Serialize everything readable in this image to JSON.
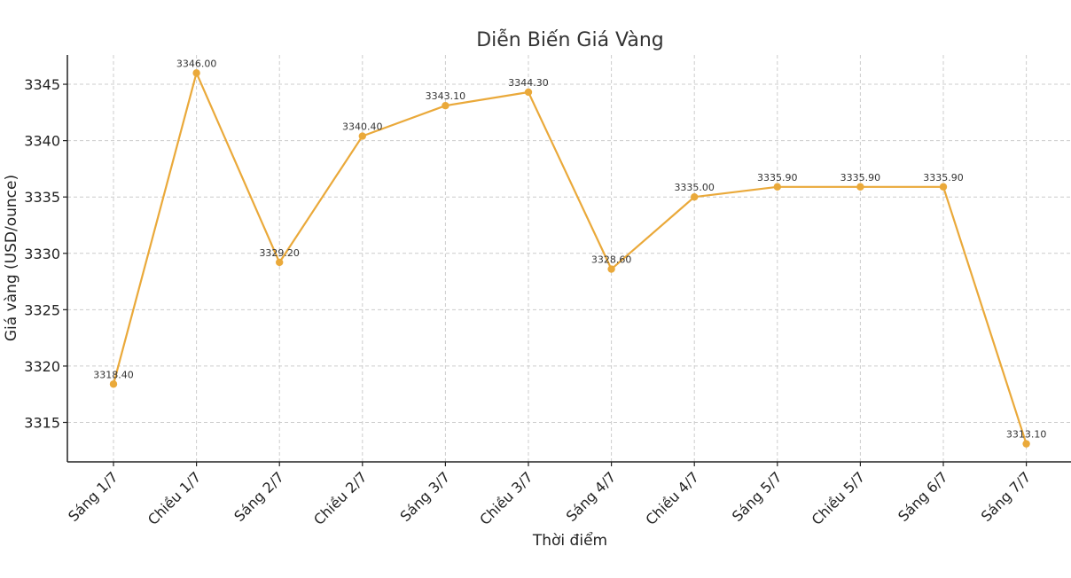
{
  "chart_data": {
    "type": "line",
    "title": "Diễn Biến Giá Vàng",
    "xlabel": "Thời điểm",
    "ylabel": "Giá vàng (USD/ounce)",
    "categories": [
      "Sáng 1/7",
      "Chiều 1/7",
      "Sáng 2/7",
      "Chiều 2/7",
      "Sáng 3/7",
      "Chiều 3/7",
      "Sáng 4/7",
      "Chiều 4/7",
      "Sáng 5/7",
      "Chiều 5/7",
      "Sáng 6/7",
      "Sáng 7/7"
    ],
    "series": [
      {
        "values": [
          3318.4,
          3346.0,
          3329.2,
          3340.4,
          3343.1,
          3344.3,
          3328.6,
          3335.0,
          3335.9,
          3335.9,
          3335.9,
          3313.1
        ],
        "value_labels": [
          "3318.40",
          "3346.00",
          "3329.20",
          "3340.40",
          "3343.10",
          "3344.30",
          "3328.60",
          "3335.00",
          "3335.90",
          "3335.90",
          "3335.90",
          "3313.10"
        ],
        "color": "#eaa93a"
      }
    ],
    "yticks": [
      "3315",
      "3320",
      "3325",
      "3330",
      "3335",
      "3340",
      "3345"
    ],
    "ylim": [
      3311.5,
      3347.6
    ],
    "grid": true,
    "marker": "circle"
  }
}
